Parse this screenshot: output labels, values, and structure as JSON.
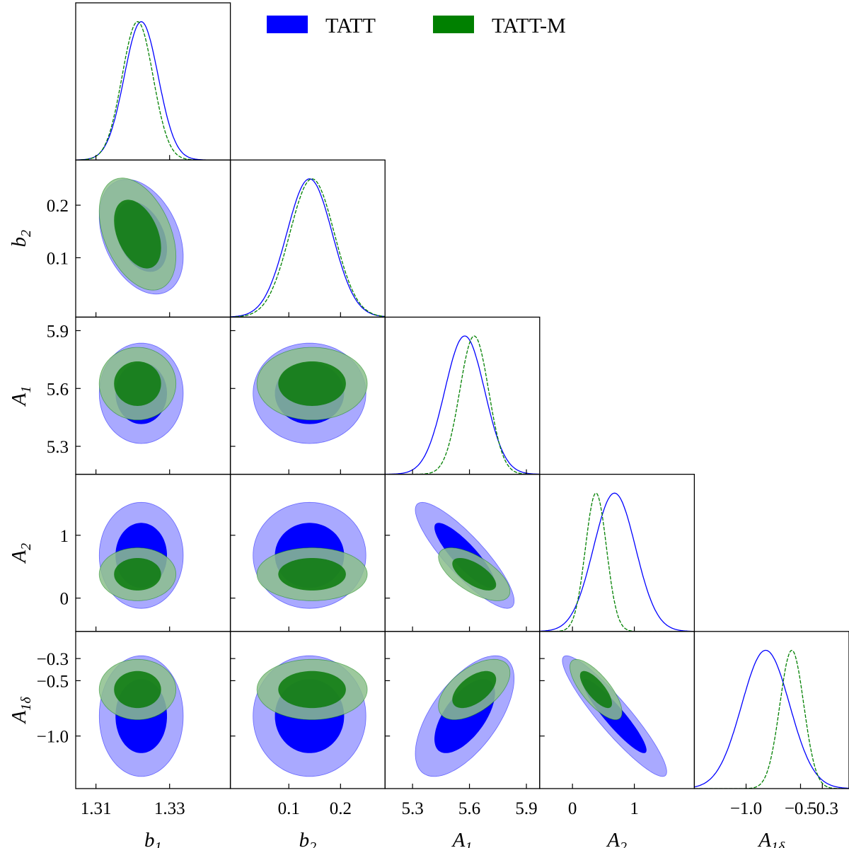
{
  "chart_data": {
    "type": "triangle-corner",
    "params": [
      {
        "key": "b1",
        "label": "b",
        "sub": "1",
        "range": [
          1.3045,
          1.3465
        ],
        "ticks": [
          1.31,
          1.33
        ],
        "tick_labels": [
          "1.31",
          "1.33"
        ]
      },
      {
        "key": "b2",
        "label": "b",
        "sub": "2",
        "range": [
          -0.013,
          0.286
        ],
        "ticks": [
          0.1,
          0.2
        ],
        "tick_labels": [
          "0.1",
          "0.2"
        ]
      },
      {
        "key": "A1",
        "label": "A",
        "sub": "1",
        "range": [
          5.155,
          5.97
        ],
        "ticks": [
          5.3,
          5.6,
          5.9
        ],
        "tick_labels": [
          "5.3",
          "5.6",
          "5.9"
        ]
      },
      {
        "key": "A2",
        "label": "A",
        "sub": "2",
        "range": [
          -0.53,
          1.97
        ],
        "ticks": [
          0,
          1
        ],
        "tick_labels": [
          "0",
          "1"
        ]
      },
      {
        "key": "A1d",
        "label": "A",
        "sub": "1δ",
        "range": [
          -1.475,
          -0.055
        ],
        "ticks": [
          -1.0,
          -0.5,
          -0.3
        ],
        "tick_labels": [
          "−1.0",
          "−0.5",
          "−0.3"
        ]
      }
    ],
    "series": [
      {
        "name": "TATT",
        "color": "#0000ff",
        "fill_inner": "#0000ff",
        "fill_outer": "#9a9aff",
        "mean": {
          "b1": 1.3223,
          "b2": 0.14,
          "A1": 5.575,
          "A2": 0.68,
          "A1d": -0.82
        },
        "sigma": {
          "b1": 0.0046,
          "b2": 0.044,
          "A1": 0.105,
          "A2": 0.34,
          "A1d": 0.22
        },
        "corr": {
          "b1|b2": -0.35,
          "b1|A1": 0.0,
          "b1|A2": 0.0,
          "b1|A1d": 0.0,
          "b2|A1": 0.0,
          "b2|A2": 0.0,
          "b2|A1d": 0.0,
          "A1|A2": -0.86,
          "A1|A1d": 0.62,
          "A2|A1d": -0.92
        }
      },
      {
        "name": "TATT-M",
        "color": "#008000",
        "fill_inner": "#0a7a0a",
        "fill_outer": "#8cc08c",
        "mean": {
          "b1": 1.3213,
          "b2": 0.145,
          "A1": 5.625,
          "A2": 0.38,
          "A1d": -0.58
        },
        "sigma": {
          "b1": 0.0042,
          "b2": 0.043,
          "A1": 0.076,
          "A2": 0.17,
          "A1d": 0.11
        },
        "corr": {
          "b1|b2": -0.4,
          "b1|A1": 0.0,
          "b1|A2": 0.0,
          "b1|A1d": 0.0,
          "b2|A1": 0.0,
          "b2|A2": 0.0,
          "b2|A1d": 0.0,
          "A1|A2": -0.65,
          "A1|A1d": 0.55,
          "A2|A1d": -0.75
        }
      }
    ],
    "contour_levels": [
      "68%",
      "95%"
    ],
    "legend_position": "top-right"
  }
}
